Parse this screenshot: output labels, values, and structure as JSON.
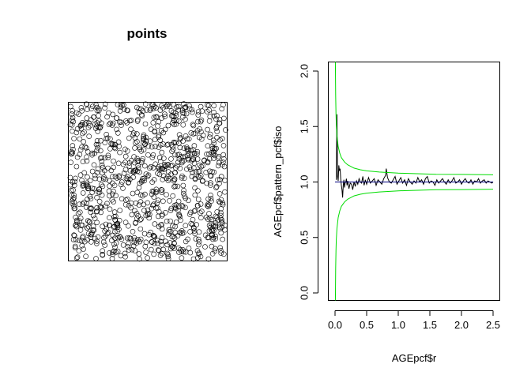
{
  "chart_data": [
    {
      "type": "scatter",
      "title": "points",
      "marker": "open-circle",
      "marker_color": "#000000",
      "window": "unit-square",
      "approx_point_count": 1000,
      "points_note_hidden": ""
    },
    {
      "type": "line",
      "title": "",
      "xlabel": "AGEpcf$r",
      "ylabel": "AGEpcf$pattern_pcf$iso",
      "xlim": [
        0,
        2.5
      ],
      "ylim": [
        0,
        2.0
      ],
      "x_ticks": [
        "0.0",
        "0.5",
        "1.0",
        "1.5",
        "2.0",
        "2.5"
      ],
      "y_ticks": [
        "0.0",
        "0.5",
        "1.0",
        "1.5",
        "2.0"
      ],
      "grid": false,
      "series": [
        {
          "role": "observed",
          "color": "#000000",
          "x": [
            0.02,
            0.03,
            0.04,
            0.05,
            0.06,
            0.07,
            0.08,
            0.09,
            0.1,
            0.11,
            0.12,
            0.13,
            0.14,
            0.15,
            0.16,
            0.17,
            0.18,
            0.19,
            0.2,
            0.22,
            0.24,
            0.26,
            0.28,
            0.3,
            0.32,
            0.34,
            0.36,
            0.38,
            0.4,
            0.42,
            0.44,
            0.46,
            0.48,
            0.5,
            0.53,
            0.56,
            0.59,
            0.62,
            0.65,
            0.68,
            0.71,
            0.74,
            0.77,
            0.8,
            0.81,
            0.82,
            0.83,
            0.86,
            0.89,
            0.92,
            0.95,
            0.98,
            1.01,
            1.04,
            1.07,
            1.1,
            1.13,
            1.16,
            1.19,
            1.22,
            1.25,
            1.28,
            1.31,
            1.34,
            1.37,
            1.4,
            1.43,
            1.46,
            1.49,
            1.52,
            1.55,
            1.58,
            1.61,
            1.64,
            1.67,
            1.7,
            1.73,
            1.76,
            1.79,
            1.82,
            1.85,
            1.88,
            1.91,
            1.94,
            1.97,
            2.0,
            2.03,
            2.06,
            2.09,
            2.12,
            2.15,
            2.18,
            2.21,
            2.24,
            2.27,
            2.3,
            2.33,
            2.36,
            2.39,
            2.42,
            2.45,
            2.48,
            2.5
          ],
          "y": [
            1.02,
            1.61,
            1.05,
            1.01,
            1.15,
            1.1,
            1.12,
            1.03,
            0.97,
            0.93,
            0.86,
            0.97,
            1.02,
            0.95,
            0.99,
            1.0,
            1.03,
            0.97,
            1.01,
            0.94,
            0.99,
            0.98,
            0.93,
            1.0,
            0.96,
            1.01,
            0.98,
            1.03,
            1.0,
            0.99,
            1.05,
            0.97,
            1.02,
            0.98,
            1.04,
            0.99,
            1.01,
            1.03,
            0.97,
            1.02,
            1.0,
            0.98,
            1.03,
            1.06,
            1.12,
            1.08,
            1.04,
            1.0,
            0.99,
            1.02,
            1.05,
            0.98,
            1.01,
            1.04,
            0.99,
            1.02,
            0.97,
            1.03,
            1.0,
            0.98,
            1.01,
            0.99,
            1.04,
            1.0,
            1.02,
            0.98,
            1.03,
            1.05,
            0.99,
            1.01,
            1.0,
            0.97,
            1.02,
            0.99,
            1.01,
            1.03,
            1.0,
            0.98,
            1.02,
            0.99,
            1.01,
            1.04,
            0.99,
            1.0,
            1.02,
            0.98,
            1.01,
            1.03,
            1.0,
            0.99,
            1.02,
            0.98,
            1.01,
            1.0,
            1.03,
            0.99,
            1.01,
            1.02,
            0.99,
            1.01,
            1.0,
            0.99,
            1.0
          ]
        },
        {
          "role": "theoretical",
          "color": "#000080",
          "x": [
            0.0,
            2.5
          ],
          "y": [
            1.0,
            1.0
          ]
        },
        {
          "role": "upper-envelope",
          "color": "#00dd00",
          "x": [
            0.005,
            0.01,
            0.015,
            0.02,
            0.03,
            0.05,
            0.075,
            0.1,
            0.15,
            0.2,
            0.3,
            0.4,
            0.5,
            0.7,
            1.0,
            1.3,
            1.6,
            2.0,
            2.5
          ],
          "y": [
            2.1,
            1.78,
            1.62,
            1.52,
            1.42,
            1.32,
            1.26,
            1.22,
            1.18,
            1.155,
            1.125,
            1.11,
            1.1,
            1.09,
            1.08,
            1.075,
            1.07,
            1.068,
            1.065
          ]
        },
        {
          "role": "lower-envelope",
          "color": "#00dd00",
          "x": [
            0.005,
            0.01,
            0.015,
            0.02,
            0.03,
            0.05,
            0.075,
            0.1,
            0.15,
            0.2,
            0.3,
            0.4,
            0.5,
            0.7,
            1.0,
            1.3,
            1.6,
            2.0,
            2.5
          ],
          "y": [
            -0.1,
            0.22,
            0.38,
            0.48,
            0.58,
            0.68,
            0.74,
            0.78,
            0.82,
            0.845,
            0.875,
            0.89,
            0.9,
            0.91,
            0.92,
            0.925,
            0.93,
            0.932,
            0.935
          ]
        }
      ]
    }
  ]
}
